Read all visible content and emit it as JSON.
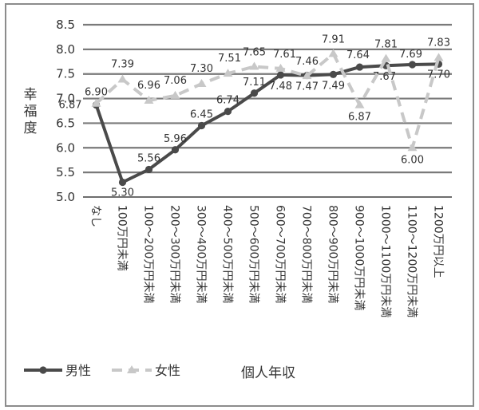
{
  "chart_data": {
    "type": "line",
    "ylabel": "幸福度",
    "xlabel": "個人年収",
    "ylim": [
      5.0,
      8.5
    ],
    "yticks": [
      "5.0",
      "5.5",
      "6.0",
      "6.5",
      "7.0",
      "7.5",
      "8.0",
      "8.5"
    ],
    "grid": true,
    "legend_position": "bottom-left",
    "categories": [
      "なし",
      "100万円未満",
      "100～200万円未満",
      "200～300万円未満",
      "300～400万円未満",
      "400～500万円未満",
      "500～600万円未満",
      "600～700万円未満",
      "700～800万円未満",
      "800～900万円未満",
      "900～1000万円未満",
      "1000～1100万円未満",
      "1100～1200万円未満",
      "1200万円以上"
    ],
    "series": [
      {
        "name": "男性",
        "style": "solid",
        "color": "#4a4a4a",
        "values": [
          6.87,
          5.3,
          5.56,
          5.96,
          6.45,
          6.74,
          7.11,
          7.48,
          7.47,
          7.49,
          7.64,
          7.67,
          7.69,
          7.7
        ],
        "labels": [
          "6.87",
          "5.30",
          "5.56",
          "5.96",
          "6.45",
          "6.74",
          "7.11",
          "7.48",
          "7.47",
          "7.49",
          "7.64",
          "7.67",
          "7.69",
          "7.70"
        ]
      },
      {
        "name": "女性",
        "style": "dashed",
        "color": "#c8c8c8",
        "values": [
          6.9,
          7.39,
          6.96,
          7.06,
          7.3,
          7.51,
          7.65,
          7.61,
          7.46,
          7.91,
          6.87,
          7.81,
          6.0,
          7.83
        ],
        "labels": [
          "6.90",
          "7.39",
          "6.96",
          "7.06",
          "7.30",
          "7.51",
          "7.65",
          "7.61",
          "7.46",
          "7.91",
          "6.87",
          "7.81",
          "6.00",
          "7.83"
        ]
      }
    ]
  }
}
